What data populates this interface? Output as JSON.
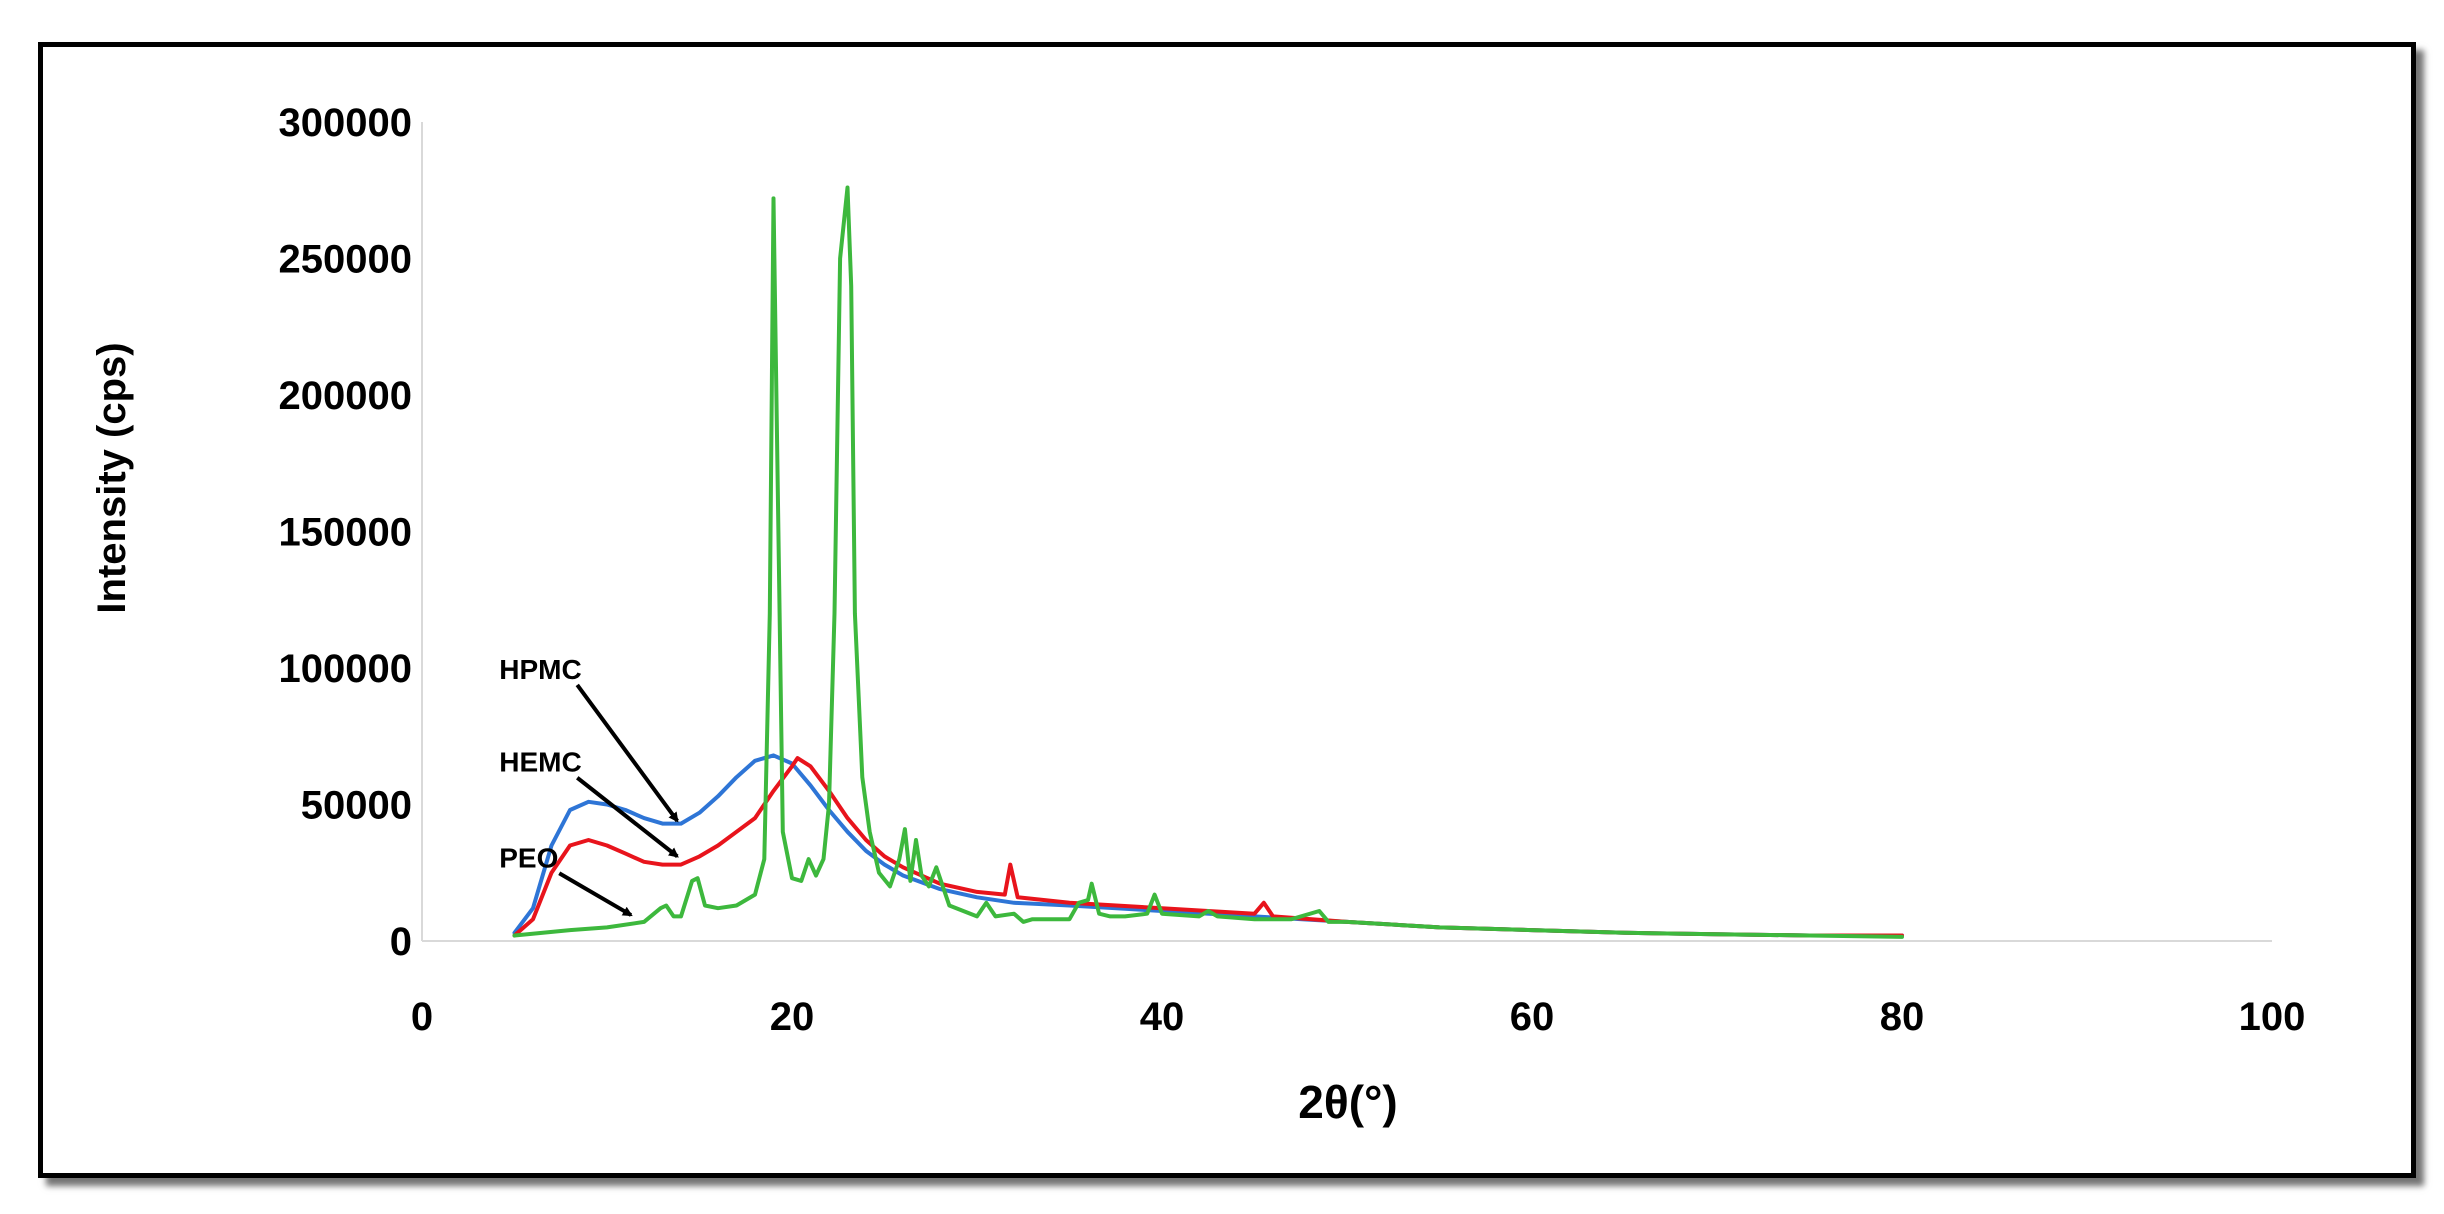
{
  "chart_data": {
    "type": "line",
    "title": "",
    "xlabel": "2θ(°)",
    "ylabel": "Intensity (cps)",
    "xlim": [
      0,
      100
    ],
    "ylim": [
      0,
      300000
    ],
    "xticks": [
      "0",
      "20",
      "40",
      "60",
      "80",
      "100"
    ],
    "yticks": [
      "0",
      "50000",
      "100000",
      "150000",
      "200000",
      "250000",
      "300000"
    ],
    "grid": false,
    "legend": "none",
    "series": [
      {
        "name": "HPMC",
        "color": "#2e75d6",
        "x": [
          5,
          6,
          7,
          8,
          9,
          10,
          11,
          12,
          13,
          14,
          15,
          16,
          17,
          18,
          19,
          20,
          21,
          22,
          23,
          24,
          25,
          26,
          28,
          30,
          32,
          35,
          40,
          45,
          50,
          55,
          60,
          65,
          70,
          75,
          80
        ],
        "y": [
          3000,
          12000,
          35000,
          48000,
          51000,
          50000,
          48000,
          45000,
          43000,
          43000,
          47000,
          53000,
          60000,
          66000,
          68000,
          65000,
          57000,
          48000,
          40000,
          33000,
          28000,
          24000,
          19000,
          16000,
          14000,
          13000,
          11000,
          9000,
          7000,
          5000,
          4000,
          3000,
          2500,
          2000,
          2000
        ]
      },
      {
        "name": "HEMC",
        "color": "#e8141c",
        "x": [
          5,
          6,
          7,
          8,
          9,
          10,
          11,
          12,
          13,
          14,
          15,
          16,
          17,
          18,
          19,
          20,
          20.3,
          21,
          22,
          23,
          24,
          25,
          26,
          28,
          30,
          31.5,
          31.8,
          32.2,
          35,
          40,
          45,
          45.5,
          46,
          50,
          55,
          60,
          65,
          70,
          75,
          80
        ],
        "y": [
          2000,
          8000,
          25000,
          35000,
          37000,
          35000,
          32000,
          29000,
          28000,
          28000,
          31000,
          35000,
          40000,
          45000,
          55000,
          64000,
          67000,
          64000,
          55000,
          45000,
          37000,
          31000,
          27000,
          21000,
          18000,
          17000,
          28000,
          16000,
          14000,
          12000,
          10000,
          14000,
          9000,
          7000,
          5000,
          4000,
          3000,
          2500,
          2000,
          2000
        ]
      },
      {
        "name": "PEO",
        "color": "#3db83d",
        "x": [
          5,
          8,
          10,
          12,
          12.9,
          13.2,
          13.6,
          14,
          14.6,
          14.9,
          15.3,
          16,
          17,
          18,
          18.5,
          18.8,
          19.0,
          19.2,
          19.5,
          20,
          20.5,
          20.9,
          21.3,
          21.7,
          22.0,
          22.3,
          22.6,
          23.0,
          23.2,
          23.4,
          23.8,
          24.2,
          24.7,
          25.3,
          25.8,
          26.1,
          26.4,
          26.7,
          27.0,
          27.4,
          27.8,
          28.5,
          30,
          30.5,
          31,
          32,
          32.5,
          33,
          35,
          35.5,
          36,
          36.2,
          36.6,
          37.2,
          38,
          39.2,
          39.6,
          40,
          42,
          42.5,
          43,
          45,
          47,
          48.5,
          49,
          50,
          55,
          60,
          65,
          70,
          75,
          80
        ],
        "y": [
          2000,
          4000,
          5000,
          7000,
          12000,
          13000,
          9000,
          9000,
          22000,
          23000,
          13000,
          12000,
          13000,
          17000,
          30000,
          120000,
          272000,
          180000,
          40000,
          23000,
          22000,
          30000,
          24000,
          30000,
          50000,
          120000,
          250000,
          276000,
          240000,
          120000,
          60000,
          40000,
          25000,
          20000,
          30000,
          41000,
          22000,
          37000,
          24000,
          20000,
          27000,
          13000,
          9000,
          14000,
          9000,
          10000,
          7000,
          8000,
          8000,
          14000,
          15000,
          21000,
          10000,
          9000,
          9000,
          10000,
          17000,
          10000,
          9000,
          11000,
          9000,
          8000,
          8000,
          11000,
          7000,
          7000,
          5000,
          4000,
          3000,
          2500,
          2000,
          1500
        ]
      }
    ],
    "annotations": [
      {
        "label": "HPMC",
        "text_at": [
          4.5,
          96000
        ],
        "arrow_to": [
          13.8,
          44000
        ]
      },
      {
        "label": "HEMC",
        "text_at": [
          4.5,
          62000
        ],
        "arrow_to": [
          13.8,
          31000
        ]
      },
      {
        "label": "PEO",
        "text_at": [
          4.5,
          27000
        ],
        "arrow_to": [
          11.3,
          9500
        ]
      }
    ]
  }
}
